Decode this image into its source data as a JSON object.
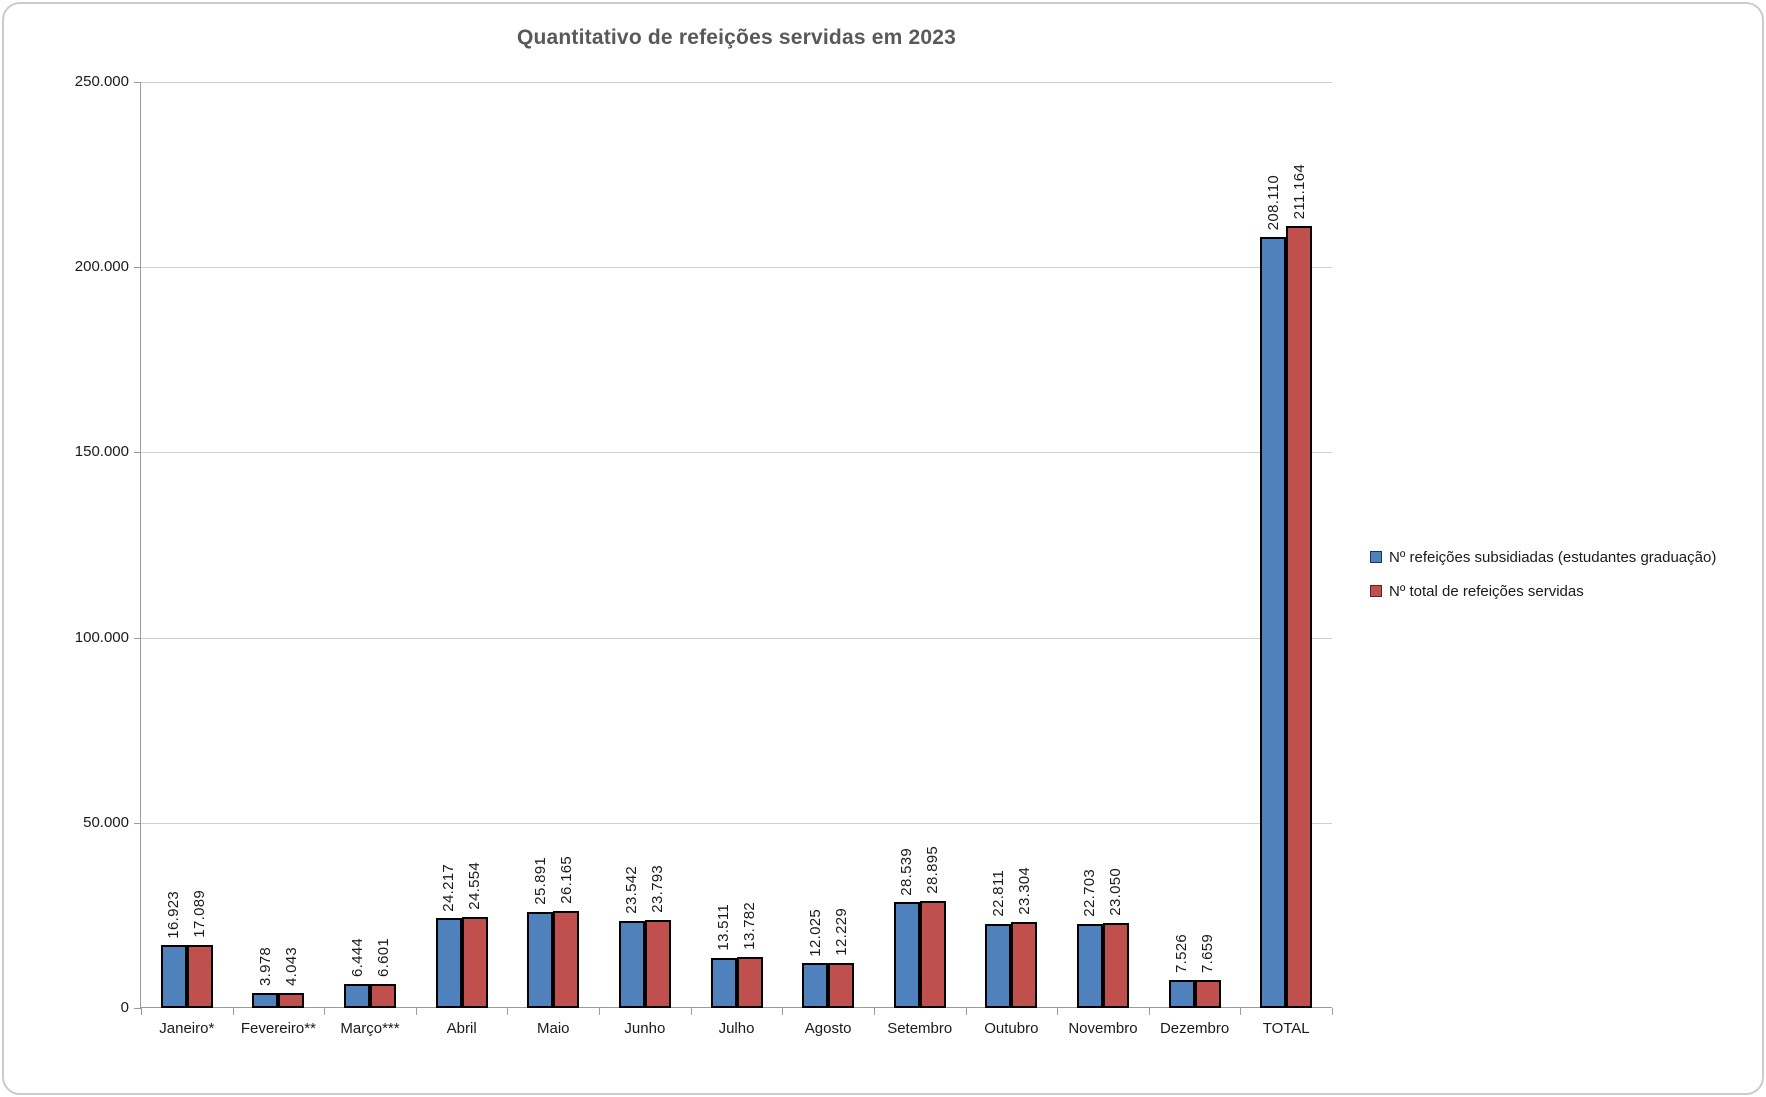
{
  "chart_data": {
    "type": "bar",
    "title": "Quantitativo de refeições servidas em 2023",
    "categories": [
      "Janeiro*",
      "Fevereiro**",
      "Março***",
      "Abril",
      "Maio",
      "Junho",
      "Julho",
      "Agosto",
      "Setembro",
      "Outubro",
      "Novembro",
      "Dezembro",
      "TOTAL"
    ],
    "series": [
      {
        "name": "Nº refeições subsidiadas (estudantes graduação)",
        "color": "#4F81BD",
        "swatch_border": "#17375E",
        "values": [
          16923,
          3978,
          6444,
          24217,
          25891,
          23542,
          13511,
          12025,
          28539,
          22811,
          22703,
          7526,
          208110
        ],
        "labels": [
          "16.923",
          "3.978",
          "6.444",
          "24.217",
          "25.891",
          "23.542",
          "13.511",
          "12.025",
          "28.539",
          "22.811",
          "22.703",
          "7.526",
          "208.110"
        ]
      },
      {
        "name": "Nº total de refeições servidas",
        "color": "#C0504D",
        "swatch_border": "#632423",
        "values": [
          17089,
          4043,
          6601,
          24554,
          26165,
          23793,
          13782,
          12229,
          28895,
          23304,
          23050,
          7659,
          211164
        ],
        "labels": [
          "17.089",
          "4.043",
          "6.601",
          "24.554",
          "26.165",
          "23.793",
          "13.782",
          "12.229",
          "28.895",
          "23.304",
          "23.050",
          "7.659",
          "211.164"
        ]
      }
    ],
    "ylim": [
      0,
      250000
    ],
    "ytick_interval": 50000,
    "ytick_labels": [
      "0",
      "50.000",
      "100.000",
      "150.000",
      "200.000",
      "250.000"
    ],
    "grid": true,
    "bar_border_color": "#000000",
    "legend_position": "right",
    "title_color": "#595959"
  }
}
